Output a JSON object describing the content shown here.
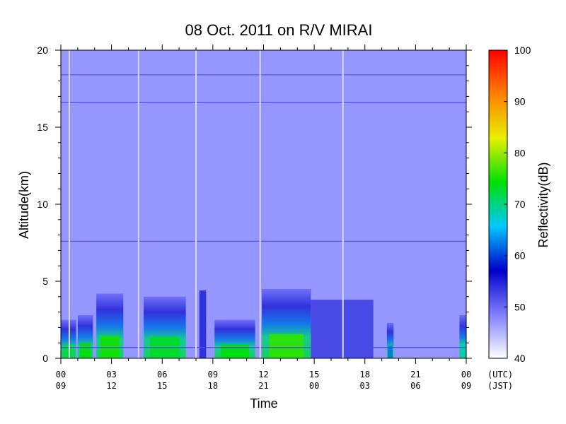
{
  "chart_data": {
    "type": "heatmap",
    "title": "08 Oct. 2011  on R/V MIRAI",
    "xlabel": "Time",
    "ylabel": "Altitude(km)",
    "colorbar_label": "Reflectivity(dB)",
    "x_ticks_utc": [
      "00",
      "03",
      "06",
      "09",
      "12",
      "15",
      "18",
      "21",
      "00"
    ],
    "x_ticks_jst": [
      "09",
      "12",
      "15",
      "18",
      "21",
      "00",
      "03",
      "06",
      "09"
    ],
    "x_tick_suffix_utc": "(UTC)",
    "x_tick_suffix_jst": "(JST)",
    "xlim_hours_utc": [
      0,
      24
    ],
    "ylim": [
      0,
      20
    ],
    "y_ticks": [
      "0",
      "5",
      "10",
      "15",
      "20"
    ],
    "y_tick_values": [
      0,
      5,
      10,
      15,
      20
    ],
    "colorbar_range": [
      40,
      100
    ],
    "colorbar_ticks": [
      "40",
      "50",
      "60",
      "70",
      "80",
      "90",
      "100"
    ],
    "colorbar_tick_values": [
      40,
      50,
      60,
      70,
      80,
      90,
      100
    ],
    "colorscale": [
      "#ffffff",
      "#7f7fff",
      "#0000c8",
      "#00c8ff",
      "#00e000",
      "#e8f000",
      "#ff8000",
      "#ff0000"
    ],
    "background_reflectivity_dB": 47,
    "data_gaps_utc_hours": [
      0.5,
      4.6,
      8.0,
      11.8,
      16.7
    ],
    "horizontal_features_km": [
      {
        "altitude": 18.4,
        "dB": 51
      },
      {
        "altitude": 16.6,
        "dB": 52
      },
      {
        "altitude": 7.6,
        "dB": 52
      },
      {
        "altitude": 0.7,
        "dB": 52
      }
    ],
    "cloud_segments": [
      {
        "start_hour": 0.0,
        "end_hour": 0.9,
        "top_km": 2.5,
        "max_dB": 72
      },
      {
        "start_hour": 1.0,
        "end_hour": 1.9,
        "top_km": 2.8,
        "max_dB": 74
      },
      {
        "start_hour": 2.1,
        "end_hour": 3.7,
        "top_km": 4.2,
        "max_dB": 75
      },
      {
        "start_hour": 4.9,
        "end_hour": 7.4,
        "top_km": 4.0,
        "max_dB": 73
      },
      {
        "start_hour": 8.2,
        "end_hour": 8.6,
        "top_km": 4.4,
        "max_dB": 55
      },
      {
        "start_hour": 9.1,
        "end_hour": 11.5,
        "top_km": 2.5,
        "max_dB": 74
      },
      {
        "start_hour": 11.9,
        "end_hour": 14.8,
        "top_km": 4.5,
        "max_dB": 76
      },
      {
        "start_hour": 14.8,
        "end_hour": 18.5,
        "top_km": 3.8,
        "max_dB": 53
      },
      {
        "start_hour": 19.3,
        "end_hour": 19.7,
        "top_km": 2.3,
        "max_dB": 62
      },
      {
        "start_hour": 23.6,
        "end_hour": 24.0,
        "top_km": 2.8,
        "max_dB": 68
      }
    ]
  }
}
